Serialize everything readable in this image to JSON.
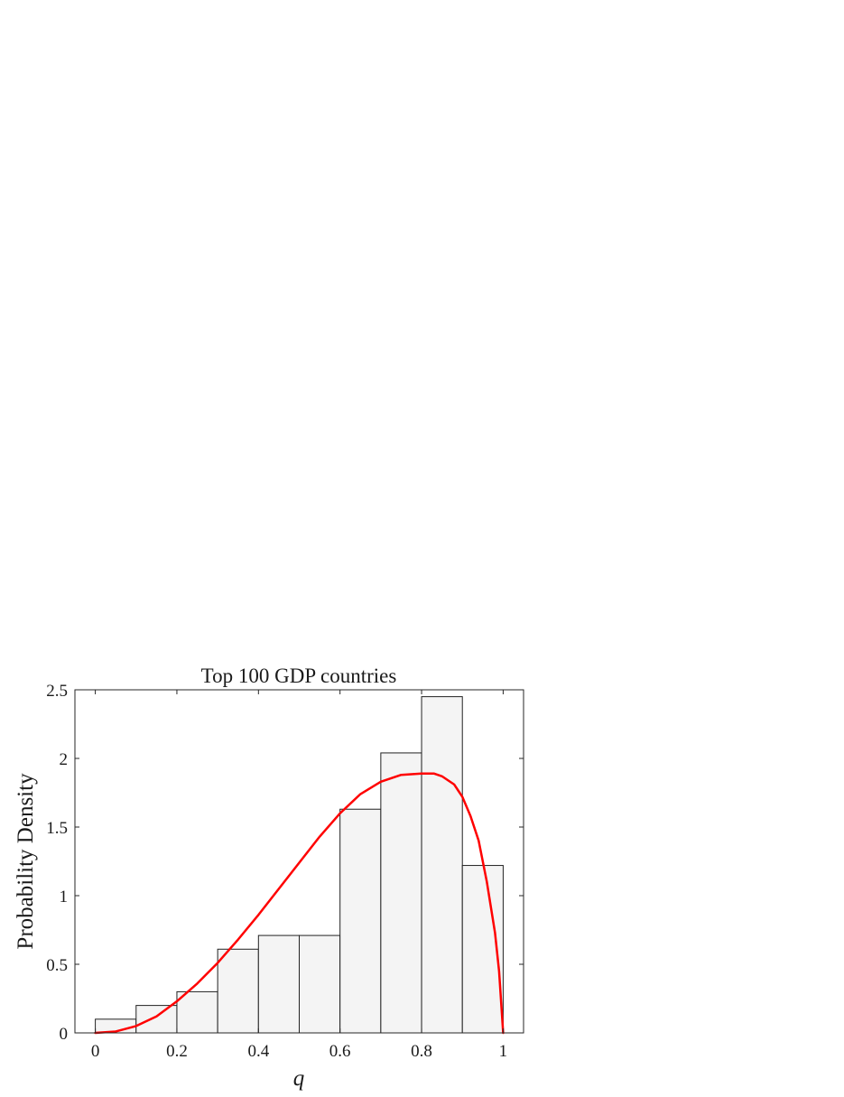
{
  "chart_data": {
    "type": "bar",
    "title": "Top 100 GDP countries",
    "xlabel": "q",
    "ylabel": "Probability Density",
    "xlim": [
      -0.05,
      1.05
    ],
    "ylim": [
      0,
      2.5
    ],
    "x_ticks": [
      "0",
      "0.2",
      "0.4",
      "0.6",
      "0.8",
      "1"
    ],
    "x_tick_values": [
      0,
      0.2,
      0.4,
      0.6,
      0.8,
      1
    ],
    "y_ticks": [
      "0",
      "0.5",
      "1",
      "1.5",
      "2",
      "2.5"
    ],
    "y_tick_values": [
      0,
      0.5,
      1,
      1.5,
      2,
      2.5
    ],
    "grid": false,
    "histogram": {
      "bin_edges": [
        0,
        0.1,
        0.2,
        0.3,
        0.4,
        0.5,
        0.6,
        0.7,
        0.8,
        0.9,
        1.0
      ],
      "values": [
        0.1,
        0.2,
        0.3,
        0.61,
        0.71,
        0.71,
        1.63,
        2.04,
        2.45,
        1.22
      ],
      "fill": "#f4f4f4",
      "edge": "#222222"
    },
    "series": [
      {
        "type": "line",
        "color": "#ff0000",
        "x": [
          0,
          0.05,
          0.1,
          0.15,
          0.2,
          0.25,
          0.3,
          0.35,
          0.4,
          0.45,
          0.5,
          0.55,
          0.6,
          0.65,
          0.7,
          0.75,
          0.8,
          0.83,
          0.85,
          0.88,
          0.9,
          0.92,
          0.94,
          0.96,
          0.98,
          0.99,
          1.0
        ],
        "y": [
          0,
          0.01,
          0.05,
          0.12,
          0.23,
          0.36,
          0.51,
          0.68,
          0.86,
          1.05,
          1.24,
          1.43,
          1.6,
          1.74,
          1.83,
          1.88,
          1.89,
          1.89,
          1.87,
          1.81,
          1.72,
          1.58,
          1.4,
          1.1,
          0.73,
          0.45,
          0
        ]
      }
    ]
  }
}
